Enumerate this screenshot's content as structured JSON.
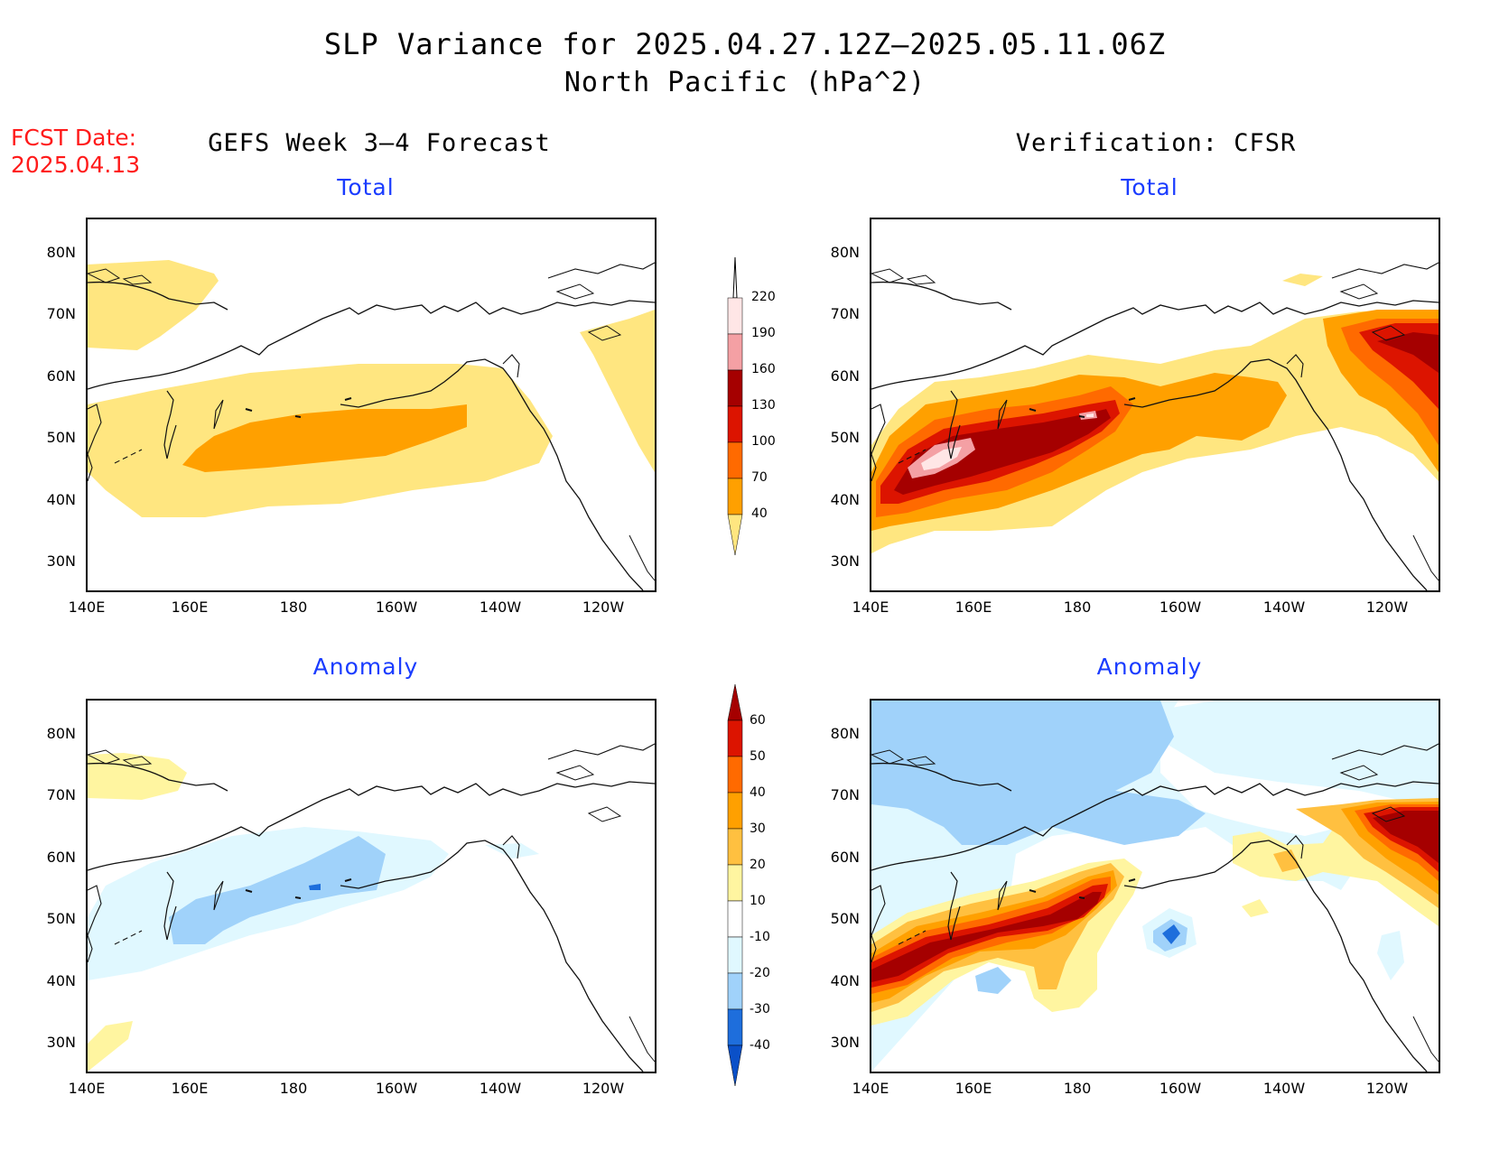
{
  "title": {
    "line1": "SLP Variance for 2025.04.27.12Z–2025.05.11.06Z",
    "line2": "North Pacific (hPa^2)"
  },
  "forecast_date": {
    "label": "FCST Date:",
    "value": "2025.04.13"
  },
  "columns": {
    "left": "GEFS Week 3–4 Forecast",
    "right": "Verification: CFSR"
  },
  "panels": {
    "top_left_title": "Total",
    "top_right_title": "Total",
    "bottom_left_title": "Anomaly",
    "bottom_right_title": "Anomaly"
  },
  "axes": {
    "lat_labels": [
      "80N",
      "70N",
      "60N",
      "50N",
      "40N",
      "30N"
    ],
    "lon_labels": [
      "140E",
      "160E",
      "180",
      "160W",
      "140W",
      "120W"
    ]
  },
  "colorbars": {
    "total": {
      "levels": [
        "220",
        "190",
        "160",
        "130",
        "100",
        "70",
        "40"
      ],
      "colors": [
        "#ffe6e6",
        "#f4a0a4",
        "#a50000",
        "#dc1400",
        "#ff6a00",
        "#ffa000",
        "#ffe680"
      ]
    },
    "anomaly": {
      "levels": [
        "60",
        "50",
        "40",
        "30",
        "20",
        "10",
        "-10",
        "-20",
        "-30",
        "-40"
      ],
      "colors": [
        "#a50000",
        "#dc1400",
        "#ff6a00",
        "#ffa000",
        "#ffc040",
        "#fff5a0",
        "#ffffff",
        "#e0f8ff",
        "#a0d2fa",
        "#5aaaf0",
        "#1e6edc",
        "#0a50c8"
      ]
    }
  }
}
